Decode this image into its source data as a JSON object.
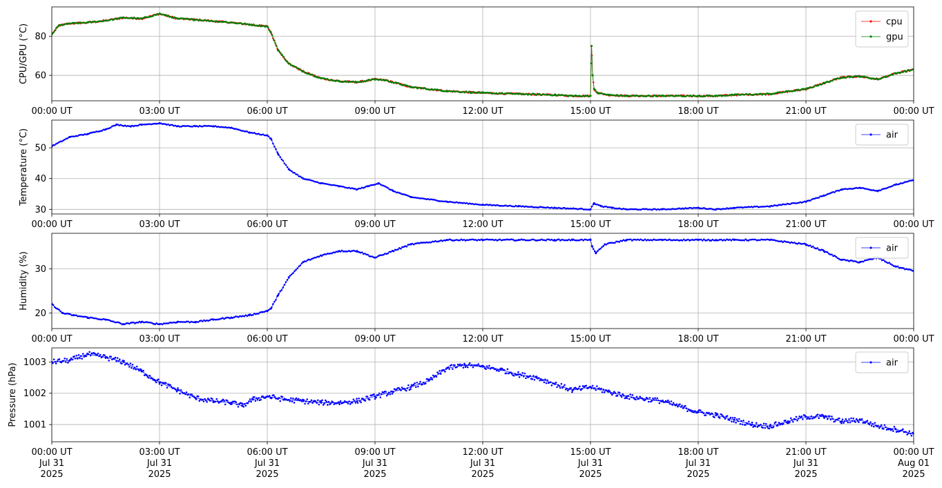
{
  "chart_data": [
    {
      "type": "line",
      "ylabel": "CPU/GPU (°C)",
      "ylim": [
        47,
        95
      ],
      "yticks": [
        60,
        80
      ],
      "grid": true,
      "legend": "top-right",
      "xticks": [
        "00:00 UT",
        "03:00 UT",
        "06:00 UT",
        "09:00 UT",
        "12:00 UT",
        "15:00 UT",
        "18:00 UT",
        "21:00 UT",
        "00:00 UT"
      ],
      "series": [
        {
          "name": "cpu",
          "color": "#ff0000",
          "x": [
            0,
            0.2,
            0.5,
            1,
            1.5,
            2,
            2.5,
            3,
            3.5,
            4,
            5,
            5.5,
            6,
            6.1,
            6.3,
            6.6,
            7,
            7.5,
            8,
            8.5,
            9,
            9.3,
            10,
            11,
            12,
            13,
            14,
            14.5,
            15,
            15.03,
            15.06,
            15.1,
            15.2,
            15.5,
            16,
            17,
            18,
            18.5,
            19,
            20,
            21,
            21.5,
            22,
            22.5,
            23,
            23.5,
            24
          ],
          "y": [
            81,
            85.5,
            86.5,
            87,
            88,
            89.5,
            89,
            91.5,
            89,
            88.5,
            87,
            86,
            85,
            82,
            73,
            66,
            62,
            58.5,
            57,
            56.5,
            58,
            57.5,
            54,
            52,
            51,
            50.5,
            50,
            49.5,
            49.5,
            75,
            60,
            53,
            51,
            50,
            49.5,
            49.5,
            49.5,
            49.5,
            50,
            50.5,
            53,
            56,
            59,
            59.5,
            58,
            61,
            63
          ]
        },
        {
          "name": "gpu",
          "color": "#008000",
          "x": [
            0,
            0.2,
            0.5,
            1,
            1.5,
            2,
            2.5,
            3,
            3.5,
            4,
            5,
            5.5,
            6,
            6.1,
            6.3,
            6.6,
            7,
            7.5,
            8,
            8.5,
            9,
            9.3,
            10,
            11,
            12,
            13,
            14,
            14.5,
            15,
            15.03,
            15.06,
            15.1,
            15.2,
            15.5,
            16,
            17,
            18,
            18.5,
            19,
            20,
            21,
            21.5,
            22,
            22.5,
            23,
            23.5,
            24
          ],
          "y": [
            81,
            85.5,
            86.5,
            87,
            88,
            89.5,
            89,
            91.5,
            89,
            88.5,
            87,
            86,
            85,
            82,
            73,
            66,
            62,
            58.5,
            57,
            56.5,
            58,
            57.5,
            54,
            52,
            51,
            50.5,
            50,
            49.5,
            49.5,
            75,
            60,
            53,
            51,
            50,
            49.5,
            49.5,
            49.5,
            49.5,
            50,
            50.5,
            53,
            56,
            59,
            59.5,
            58,
            61,
            63
          ]
        }
      ]
    },
    {
      "type": "line",
      "ylabel": "Temperature (°C)",
      "ylim": [
        28.5,
        59
      ],
      "yticks": [
        30,
        40,
        50
      ],
      "grid": true,
      "legend": "top-right",
      "xticks": [
        "00:00 UT",
        "03:00 UT",
        "06:00 UT",
        "09:00 UT",
        "12:00 UT",
        "15:00 UT",
        "18:00 UT",
        "21:00 UT",
        "00:00 UT"
      ],
      "series": [
        {
          "name": "air",
          "color": "#0000ff",
          "x": [
            0,
            0.5,
            1,
            1.5,
            1.8,
            2.2,
            2.5,
            3,
            3.5,
            4,
            4.5,
            5,
            5.5,
            6,
            6.1,
            6.3,
            6.6,
            7,
            7.5,
            8,
            8.5,
            8.8,
            9.1,
            9.5,
            10,
            11,
            12,
            13,
            14,
            15,
            15.1,
            15.3,
            15.6,
            16,
            17,
            18,
            18.5,
            19,
            20,
            21,
            21.5,
            22,
            22.5,
            23,
            23.5,
            24
          ],
          "y": [
            50.5,
            53.5,
            54.5,
            56,
            57.5,
            57,
            57.5,
            58,
            57,
            57,
            57,
            56.5,
            55,
            54,
            53,
            48,
            43,
            40,
            38.5,
            37.5,
            36.5,
            37.5,
            38.5,
            36,
            34,
            32.5,
            31.5,
            31,
            30.5,
            30,
            32,
            31,
            30.5,
            30,
            30,
            30.5,
            30,
            30.5,
            31,
            32.5,
            34.5,
            36.5,
            37,
            36,
            38,
            39.5
          ]
        }
      ]
    },
    {
      "type": "line",
      "ylabel": "Humidity (%)",
      "ylim": [
        16.5,
        38
      ],
      "yticks": [
        20,
        30
      ],
      "grid": true,
      "legend": "top-right",
      "xticks": [
        "00:00 UT",
        "03:00 UT",
        "06:00 UT",
        "09:00 UT",
        "12:00 UT",
        "15:00 UT",
        "18:00 UT",
        "21:00 UT",
        "00:00 UT"
      ],
      "series": [
        {
          "name": "air",
          "color": "#0000ff",
          "x": [
            0,
            0.3,
            0.6,
            1,
            1.5,
            2,
            2.5,
            3,
            3.5,
            4,
            4.5,
            5,
            5.5,
            6,
            6.1,
            6.3,
            6.6,
            7,
            7.5,
            8,
            8.5,
            9,
            9.5,
            10,
            11,
            12,
            13,
            14,
            14.5,
            15,
            15.05,
            15.15,
            15.4,
            16,
            17,
            18,
            18.5,
            19,
            20,
            21,
            21.5,
            22,
            22.5,
            23,
            23.5,
            24
          ],
          "y": [
            22,
            20,
            19.5,
            19,
            18.5,
            17.5,
            18,
            17.5,
            18,
            18,
            18.5,
            19,
            19.5,
            20.5,
            21,
            24,
            28,
            31.5,
            33,
            34,
            34,
            32.5,
            34,
            35.5,
            36.5,
            36.5,
            36.5,
            36.5,
            36.5,
            36.5,
            35,
            33.5,
            35.5,
            36.5,
            36.5,
            36.5,
            36.5,
            36.5,
            36.5,
            35.5,
            34,
            32,
            31.5,
            32.5,
            30.5,
            29.5
          ]
        }
      ]
    },
    {
      "type": "line",
      "ylabel": "Pressure (hPa)",
      "ylim": [
        1000.45,
        1003.45
      ],
      "yticks": [
        1001,
        1002,
        1003
      ],
      "grid": true,
      "legend": "top-right",
      "xticks": [
        "00:00 UT\nJul 31\n2025",
        "03:00 UT\nJul 31\n2025",
        "06:00 UT\nJul 31\n2025",
        "09:00 UT\nJul 31\n2025",
        "12:00 UT\nJul 31\n2025",
        "15:00 UT\nJul 31\n2025",
        "18:00 UT\nJul 31\n2025",
        "21:00 UT\nJul 31\n2025",
        "00:00 UT\nAug 01\n2025"
      ],
      "series": [
        {
          "name": "air",
          "color": "#0000ff",
          "x": [
            0,
            0.5,
            1,
            1.5,
            2,
            2.5,
            3,
            3.5,
            4,
            4.5,
            5,
            5.3,
            5.6,
            6,
            6.5,
            7,
            7.5,
            8,
            8.5,
            9,
            9.5,
            10,
            10.5,
            11,
            11.5,
            12,
            12.5,
            13,
            13.5,
            14,
            14.5,
            15,
            15.5,
            16,
            17,
            18,
            18.5,
            19,
            19.5,
            20,
            20.5,
            21,
            21.5,
            22,
            22.5,
            23,
            23.5,
            24
          ],
          "y": [
            1003.0,
            1003.05,
            1003.25,
            1003.15,
            1003.0,
            1002.7,
            1002.35,
            1002.1,
            1001.85,
            1001.75,
            1001.7,
            1001.6,
            1001.8,
            1001.9,
            1001.8,
            1001.75,
            1001.7,
            1001.7,
            1001.75,
            1001.9,
            1002.05,
            1002.2,
            1002.4,
            1002.8,
            1002.9,
            1002.85,
            1002.75,
            1002.6,
            1002.5,
            1002.3,
            1002.1,
            1002.2,
            1002.05,
            1001.9,
            1001.75,
            1001.4,
            1001.3,
            1001.15,
            1001.0,
            1000.95,
            1001.1,
            1001.25,
            1001.25,
            1001.1,
            1001.15,
            1000.95,
            1000.85,
            1000.7
          ]
        }
      ]
    }
  ]
}
